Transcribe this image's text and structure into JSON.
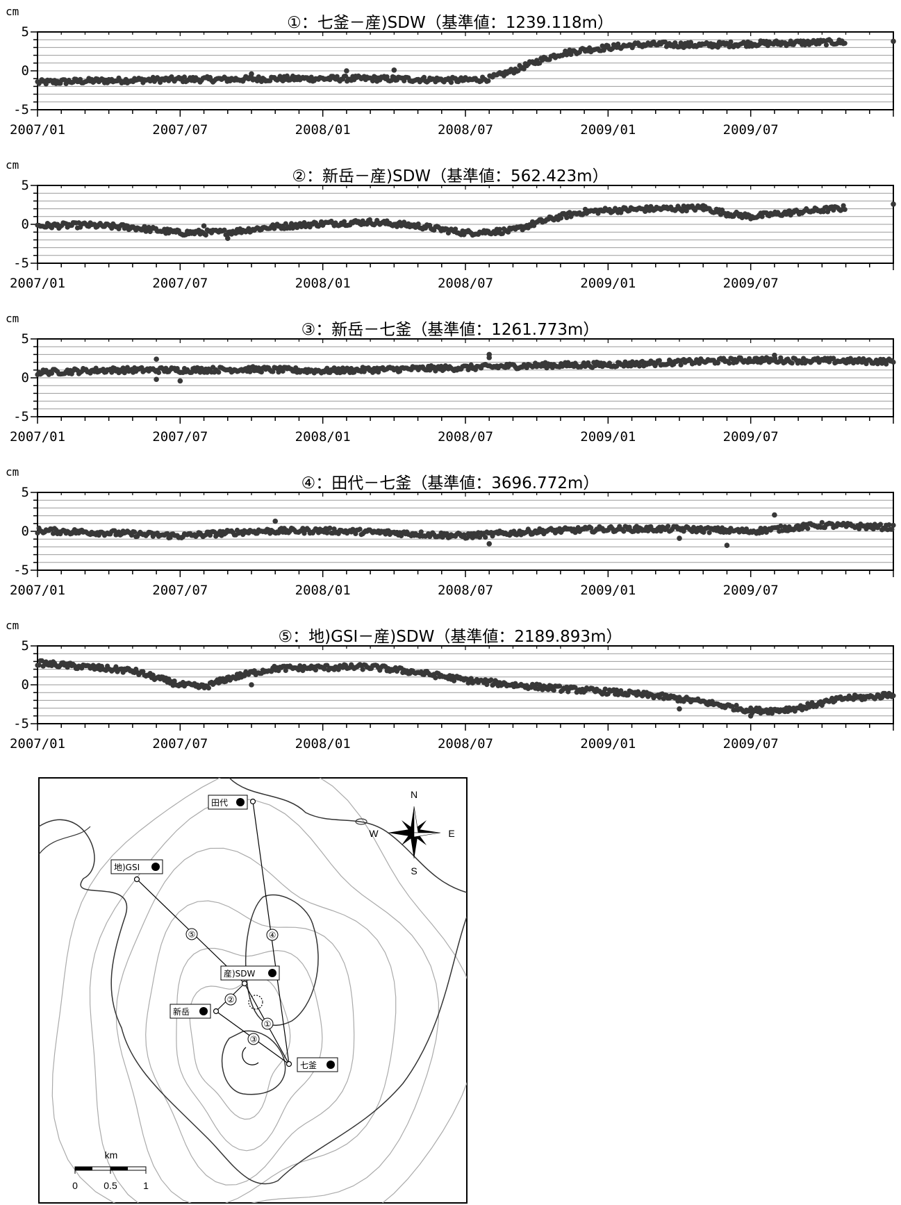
{
  "chart_data": [
    {
      "type": "scatter",
      "title": "①：七釜－産)SDW（基準値：1239.118m）",
      "unit": "cm",
      "ylim": [
        -5,
        5
      ],
      "yticks": [
        "5",
        "0",
        "-5"
      ],
      "xticks": [
        "2007/01",
        "2007/07",
        "2008/01",
        "2008/07",
        "2009/01",
        "2009/07"
      ],
      "xlim": [
        "2007/01",
        "2010/01"
      ],
      "grid": true,
      "series": [
        {
          "x": [
            "2007/01",
            "2007/03",
            "2007/05",
            "2007/07",
            "2007/09",
            "2007/11",
            "2008/01",
            "2008/03",
            "2008/05",
            "2008/07",
            "2008/08",
            "2008/09",
            "2008/10",
            "2008/11",
            "2008/12",
            "2009/01",
            "2009/02",
            "2009/03",
            "2009/05",
            "2009/07",
            "2009/09",
            "2009/11"
          ],
          "y": [
            -1.5,
            -1.3,
            -1.2,
            -1.1,
            -1.1,
            -1.0,
            -1.0,
            -1.0,
            -1.1,
            -1.2,
            -1.0,
            0.0,
            1.2,
            2.2,
            2.7,
            3.0,
            3.3,
            3.4,
            3.3,
            3.5,
            3.6,
            3.7
          ]
        }
      ],
      "outliers": {
        "x": [
          "2008/02",
          "2008/04",
          "2007/10",
          "2010/01"
        ],
        "y": [
          0.0,
          0.1,
          -0.4,
          3.8
        ]
      }
    },
    {
      "type": "scatter",
      "title": "②：新岳－産)SDW（基準値：562.423m）",
      "unit": "cm",
      "ylim": [
        -5,
        5
      ],
      "yticks": [
        "5",
        "0",
        "-5"
      ],
      "xticks": [
        "2007/01",
        "2007/07",
        "2008/01",
        "2008/07",
        "2009/01",
        "2009/07"
      ],
      "xlim": [
        "2007/01",
        "2010/01"
      ],
      "grid": true,
      "series": [
        {
          "x": [
            "2007/01",
            "2007/03",
            "2007/05",
            "2007/07",
            "2007/09",
            "2007/11",
            "2008/01",
            "2008/03",
            "2008/05",
            "2008/07",
            "2008/09",
            "2008/10",
            "2008/11",
            "2008/12",
            "2009/01",
            "2009/03",
            "2009/05",
            "2009/06",
            "2009/07",
            "2009/09",
            "2009/11"
          ],
          "y": [
            -0.2,
            -0.1,
            -0.4,
            -1.1,
            -1.0,
            -0.3,
            0.1,
            0.3,
            -0.2,
            -1.1,
            -0.8,
            0.2,
            1.0,
            1.6,
            1.8,
            2.0,
            2.1,
            1.4,
            1.0,
            1.6,
            2.1
          ]
        }
      ],
      "outliers": {
        "x": [
          "2007/09",
          "2007/08",
          "2009/05",
          "2010/01"
        ],
        "y": [
          -1.8,
          -0.2,
          2.4,
          2.6
        ]
      }
    },
    {
      "type": "scatter",
      "title": "③：新岳－七釜（基準値：1261.773m）",
      "unit": "cm",
      "ylim": [
        -5,
        5
      ],
      "yticks": [
        "5",
        "0",
        "-5"
      ],
      "xticks": [
        "2007/01",
        "2007/07",
        "2008/01",
        "2008/07",
        "2009/01",
        "2009/07"
      ],
      "xlim": [
        "2007/01",
        "2010/01"
      ],
      "grid": true,
      "series": [
        {
          "x": [
            "2007/01",
            "2007/04",
            "2007/07",
            "2007/10",
            "2008/01",
            "2008/04",
            "2008/07",
            "2008/10",
            "2009/01",
            "2009/04",
            "2009/07",
            "2009/10",
            "2010/01"
          ],
          "y": [
            0.7,
            1.0,
            1.0,
            1.1,
            0.9,
            1.1,
            1.3,
            1.6,
            1.7,
            2.0,
            2.3,
            2.2,
            2.1
          ]
        }
      ],
      "outliers": {
        "x": [
          "2007/06",
          "2007/06",
          "2007/07",
          "2008/08",
          "2008/08",
          "2009/08"
        ],
        "y": [
          2.4,
          -0.2,
          -0.4,
          3.0,
          2.6,
          2.9
        ]
      }
    },
    {
      "type": "scatter",
      "title": "④：田代－七釜（基準値：3696.772m）",
      "unit": "cm",
      "ylim": [
        -5,
        5
      ],
      "yticks": [
        "5",
        "0",
        "-5"
      ],
      "xticks": [
        "2007/01",
        "2007/07",
        "2008/01",
        "2008/07",
        "2009/01",
        "2009/07"
      ],
      "xlim": [
        "2007/01",
        "2010/01"
      ],
      "grid": true,
      "series": [
        {
          "x": [
            "2007/01",
            "2007/04",
            "2007/07",
            "2007/10",
            "2008/01",
            "2008/04",
            "2008/07",
            "2008/10",
            "2009/01",
            "2009/04",
            "2009/07",
            "2009/10",
            "2010/01"
          ],
          "y": [
            0.1,
            -0.2,
            -0.6,
            0.0,
            0.1,
            -0.2,
            -0.6,
            0.0,
            0.3,
            0.3,
            0.0,
            0.8,
            0.5
          ]
        }
      ],
      "outliers": {
        "x": [
          "2007/11",
          "2008/08",
          "2009/06",
          "2009/08",
          "2009/04"
        ],
        "y": [
          1.3,
          -1.6,
          -1.8,
          2.1,
          -0.9
        ]
      }
    },
    {
      "type": "scatter",
      "title": "⑤：地)GSI－産)SDW（基準値：2189.893m）",
      "unit": "cm",
      "ylim": [
        -5,
        5
      ],
      "yticks": [
        "5",
        "0",
        "-5"
      ],
      "xticks": [
        "2007/01",
        "2007/07",
        "2008/01",
        "2008/07",
        "2009/01",
        "2009/07"
      ],
      "xlim": [
        "2007/01",
        "2010/01"
      ],
      "grid": true,
      "series": [
        {
          "x": [
            "2007/01",
            "2007/03",
            "2007/05",
            "2007/07",
            "2007/08",
            "2007/09",
            "2007/10",
            "2007/11",
            "2008/01",
            "2008/03",
            "2008/05",
            "2008/07",
            "2008/09",
            "2008/11",
            "2009/01",
            "2009/03",
            "2009/05",
            "2009/07",
            "2009/08",
            "2009/09",
            "2009/11",
            "2009/12",
            "2010/01"
          ],
          "y": [
            2.8,
            2.3,
            1.8,
            0.0,
            -0.3,
            0.8,
            1.5,
            2.1,
            2.2,
            2.3,
            1.6,
            0.6,
            0.0,
            -0.5,
            -0.9,
            -1.4,
            -2.2,
            -3.3,
            -3.3,
            -3.0,
            -1.7,
            -1.6,
            -1.2
          ]
        }
      ],
      "outliers": {
        "x": [
          "2007/10",
          "2009/04",
          "2009/07"
        ],
        "y": [
          0.0,
          -3.1,
          -4.0
        ]
      }
    }
  ],
  "map": {
    "stations": [
      {
        "label": "田代"
      },
      {
        "label": "地)GSI"
      },
      {
        "label": "産)SDW"
      },
      {
        "label": "新岳"
      },
      {
        "label": "七釜"
      }
    ],
    "baseline_labels": [
      "①",
      "②",
      "③",
      "④",
      "⑤"
    ],
    "compass": {
      "n": "N",
      "s": "S",
      "e": "E",
      "w": "W"
    },
    "scale": {
      "unit": "km",
      "ticks": [
        "0",
        "0.5",
        "1"
      ]
    },
    "colors": {
      "contour": "#aaaaaa",
      "coast": "#333333",
      "line": "#000000"
    }
  },
  "colors": {
    "dots": "#383838",
    "grid": "#999999",
    "frame": "#000000"
  }
}
